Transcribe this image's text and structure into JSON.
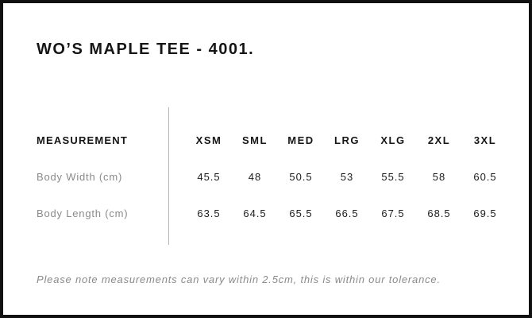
{
  "page": {
    "title": "WO’S MAPLE TEE - 4001.",
    "note": "Please note measurements can vary within 2.5cm, this is within our tolerance."
  },
  "size_chart": {
    "label_header": "MEASUREMENT",
    "columns": [
      "XSM",
      "SML",
      "MED",
      "LRG",
      "XLG",
      "2XL",
      "3XL"
    ],
    "rows": [
      {
        "label": "Body Width (cm)",
        "values": [
          "45.5",
          "48",
          "50.5",
          "53",
          "55.5",
          "58",
          "60.5"
        ]
      },
      {
        "label": "Body Length (cm)",
        "values": [
          "63.5",
          "64.5",
          "65.5",
          "66.5",
          "67.5",
          "68.5",
          "69.5"
        ]
      }
    ]
  },
  "colors": {
    "background": "#ffffff",
    "border": "#111111",
    "heading_text": "#151515",
    "value_text": "#1c1c1c",
    "muted_text": "#8a8a8a",
    "divider": "#b5b5b5"
  }
}
